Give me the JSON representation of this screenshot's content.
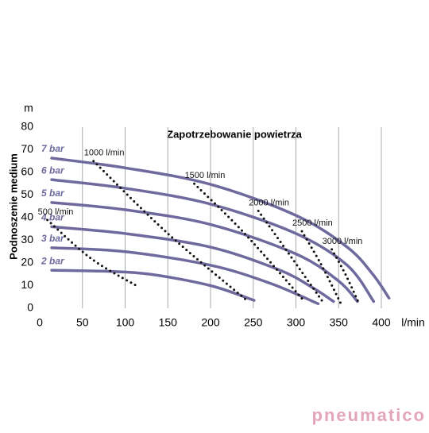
{
  "chart_data": {
    "type": "line",
    "title": "Zapotrzebowanie powietrza",
    "y_label": "Podnoszenie medium",
    "y_unit": "m",
    "x_unit": "l/min",
    "xlim": [
      0,
      400
    ],
    "xticks": [
      0,
      50,
      100,
      150,
      200,
      250,
      300,
      350,
      400
    ],
    "ylim": [
      0,
      80
    ],
    "yticks": [
      0,
      10,
      20,
      30,
      40,
      50,
      60,
      70,
      80
    ],
    "grid": "x",
    "series": [
      {
        "name": "7 bar",
        "color": "#6e6a9e",
        "style": "solid",
        "x": [
          14,
          100,
          200,
          300,
          360,
          390,
          409
        ],
        "values": [
          66.3,
          62,
          54.7,
          41,
          27,
          15,
          4.5
        ]
      },
      {
        "name": "6 bar",
        "color": "#6e6a9e",
        "style": "solid",
        "x": [
          14,
          100,
          200,
          300,
          360,
          391
        ],
        "values": [
          56.8,
          53,
          46,
          33,
          19,
          3
        ]
      },
      {
        "name": "5 bar",
        "color": "#6e6a9e",
        "style": "solid",
        "x": [
          14,
          100,
          200,
          300,
          350,
          372
        ],
        "values": [
          46.7,
          43.5,
          37,
          24,
          12,
          3
        ]
      },
      {
        "name": "4 bar",
        "color": "#6e6a9e",
        "style": "solid",
        "x": [
          14,
          100,
          200,
          280,
          320,
          344
        ],
        "values": [
          36,
          33,
          27,
          17,
          9,
          3
        ]
      },
      {
        "name": "3 bar",
        "color": "#6e6a9e",
        "style": "solid",
        "x": [
          14,
          100,
          200,
          270,
          326
        ],
        "values": [
          26.7,
          25,
          19,
          11,
          2
        ]
      },
      {
        "name": "2 bar",
        "color": "#6e6a9e",
        "style": "solid",
        "x": [
          14,
          80,
          130,
          200,
          251
        ],
        "values": [
          16.8,
          16.3,
          15,
          10,
          3.5
        ]
      },
      {
        "name": "500 l/min",
        "color": "#111111",
        "style": "dotted",
        "x": [
          9,
          60,
          113
        ],
        "values": [
          39,
          22,
          10
        ]
      },
      {
        "name": "1000 l/min",
        "color": "#111111",
        "style": "dotted",
        "x": [
          63,
          150,
          244
        ],
        "values": [
          65,
          33,
          3
        ]
      },
      {
        "name": "1500 l/min",
        "color": "#111111",
        "style": "dotted",
        "x": [
          181,
          240,
          310
        ],
        "values": [
          55,
          33,
          3
        ]
      },
      {
        "name": "2000 l/min",
        "color": "#111111",
        "style": "dotted",
        "x": [
          256,
          290,
          333
        ],
        "values": [
          43,
          25,
          2
        ]
      },
      {
        "name": "2500 l/min",
        "color": "#111111",
        "style": "dotted",
        "x": [
          307,
          330,
          354
        ],
        "values": [
          34,
          19,
          1
        ]
      },
      {
        "name": "3000 l/min",
        "color": "#111111",
        "style": "dotted",
        "x": [
          342,
          358,
          374
        ],
        "values": [
          26,
          15,
          2
        ]
      }
    ],
    "brand": "pneumatico"
  }
}
